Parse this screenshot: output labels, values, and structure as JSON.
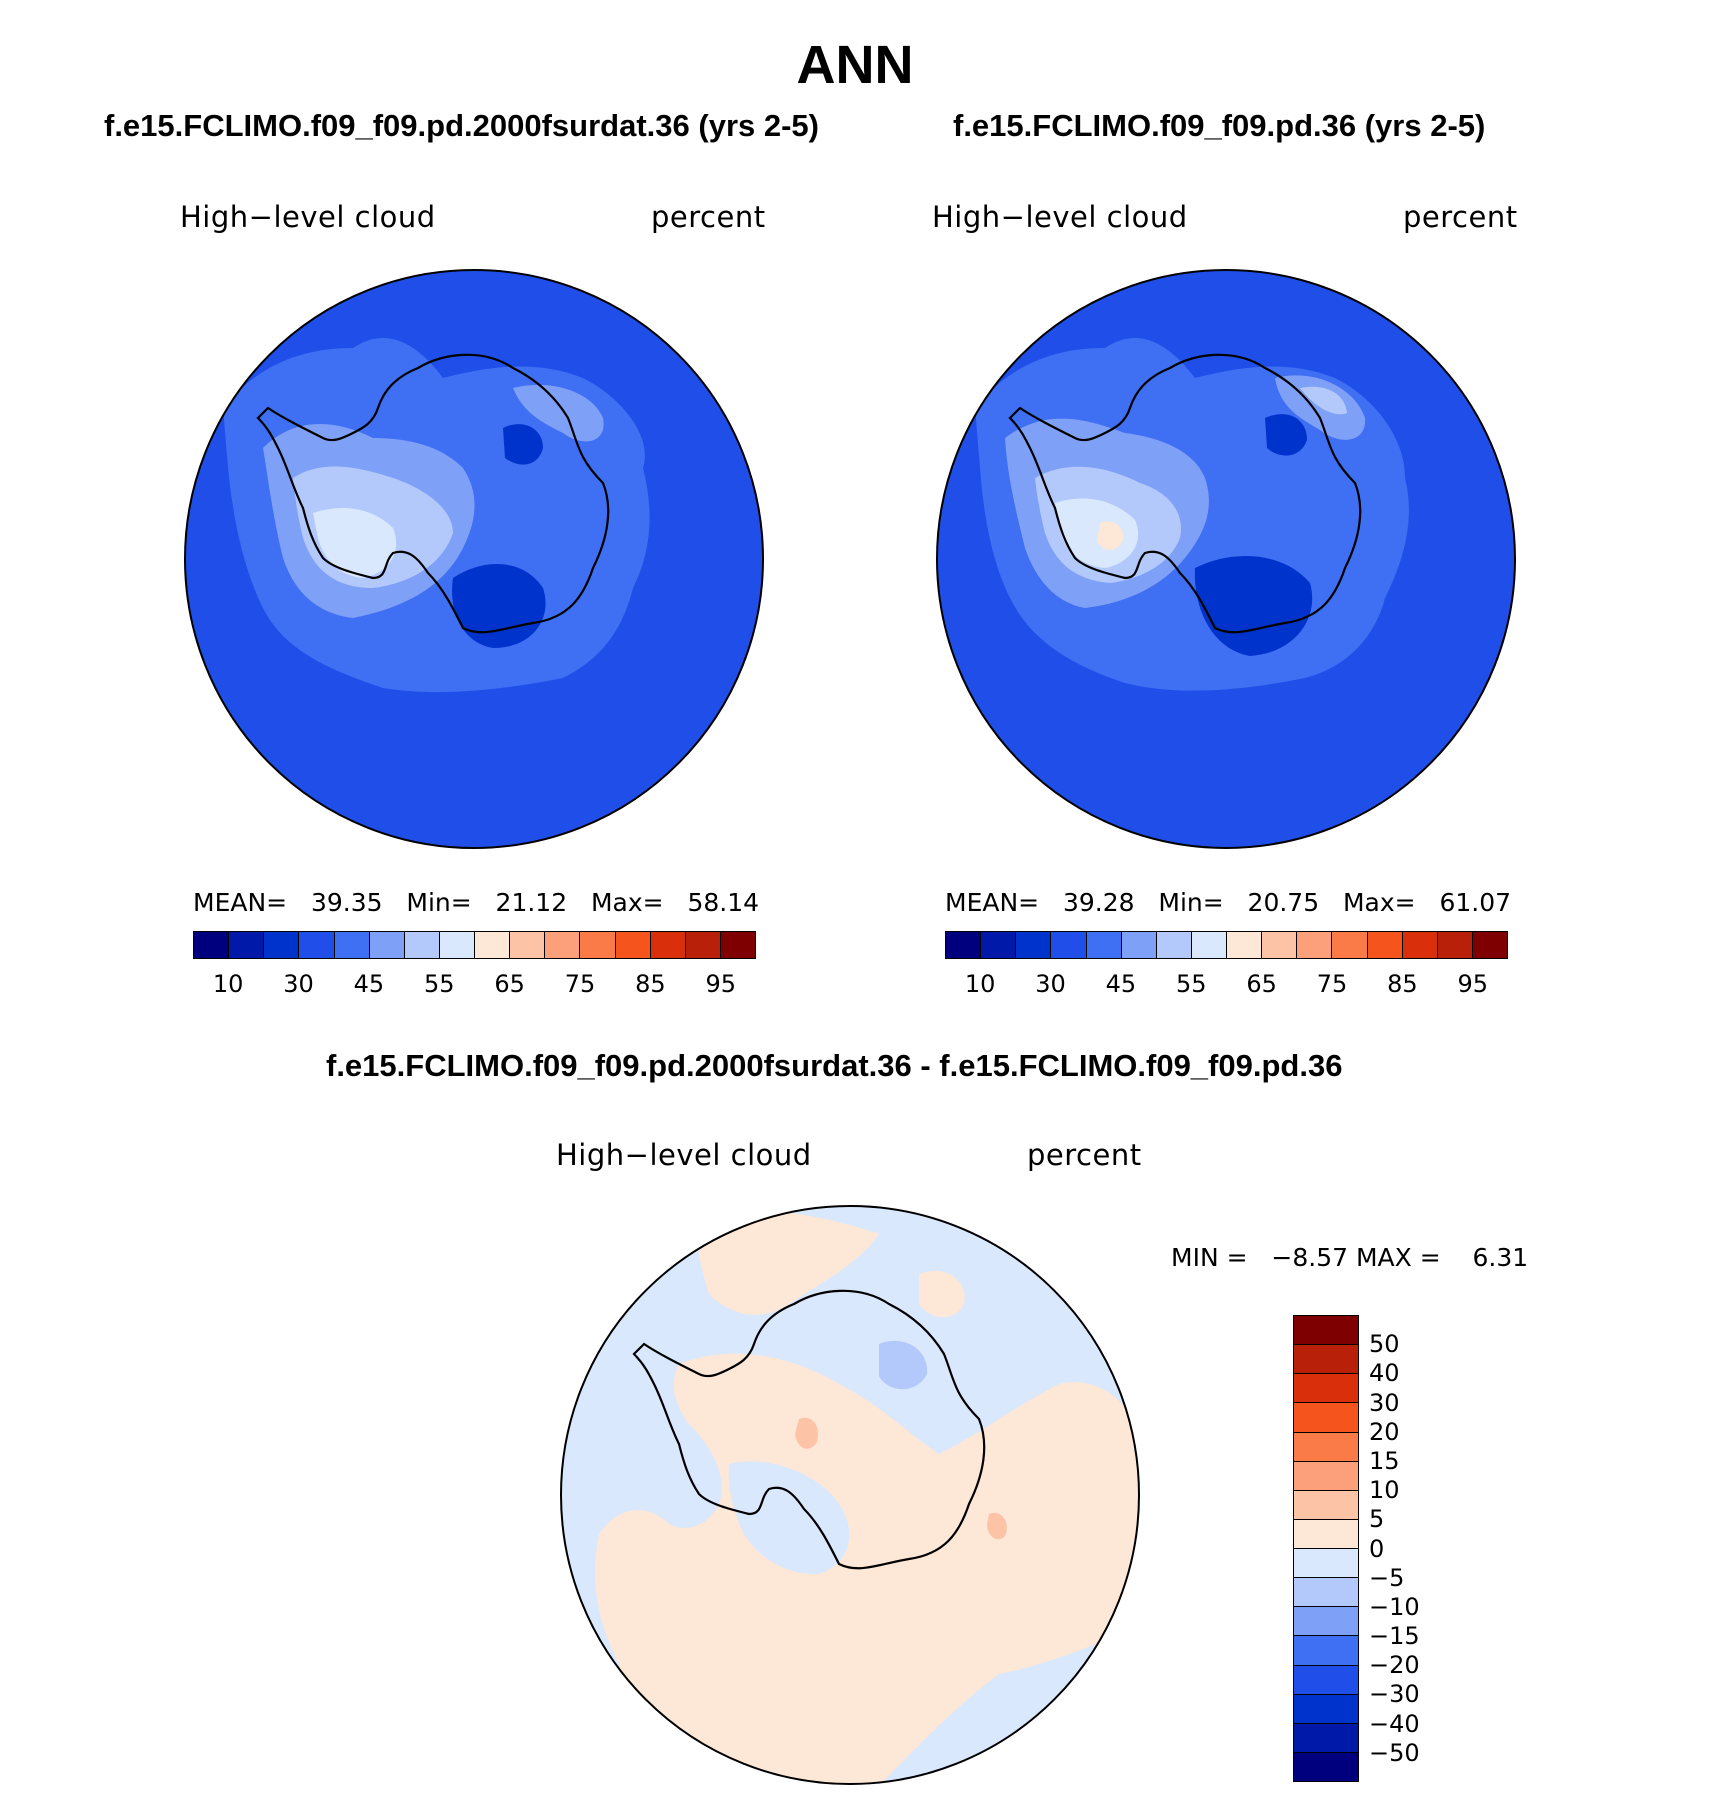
{
  "title": "ANN",
  "panels": [
    {
      "case_title": "f.e15.FCLIMO.f09_f09.pd.2000fsurdat.36 (yrs 2-5)",
      "variable": "High−level cloud",
      "units": "percent",
      "stats": {
        "mean_label": "MEAN=",
        "mean": "39.35",
        "min_label": "Min=",
        "min": "21.12",
        "max_label": "Max=",
        "max": "58.14"
      }
    },
    {
      "case_title": "f.e15.FCLIMO.f09_f09.pd.36 (yrs 2-5)",
      "variable": "High−level cloud",
      "units": "percent",
      "stats": {
        "mean_label": "MEAN=",
        "mean": "39.28",
        "min_label": "Min=",
        "min": "20.75",
        "max_label": "Max=",
        "max": "61.07"
      }
    }
  ],
  "diff_panel": {
    "case_title": "f.e15.FCLIMO.f09_f09.pd.2000fsurdat.36 - f.e15.FCLIMO.f09_f09.pd.36",
    "variable": "High−level cloud",
    "units": "percent",
    "min_label": "MIN =",
    "min": "−8.57",
    "max_label": "MAX =",
    "max": "6.31"
  },
  "colorbar_top": {
    "colors": [
      "#00007f",
      "#0019a8",
      "#0033cc",
      "#1f4fe8",
      "#3f6ff2",
      "#7fa0f7",
      "#b3c9fb",
      "#d9e8fd",
      "#fde7d7",
      "#fdc3a6",
      "#fca07b",
      "#fb7b48",
      "#f5541c",
      "#d92f0a",
      "#b8200a",
      "#7f0000"
    ],
    "tick_labels": [
      "10",
      "30",
      "45",
      "55",
      "65",
      "75",
      "85",
      "95"
    ]
  },
  "colorbar_diff": {
    "colors": [
      "#7f0000",
      "#b8200a",
      "#d92f0a",
      "#f5541c",
      "#fb7b48",
      "#fca07b",
      "#fdc3a6",
      "#fde7d7",
      "#d9e8fd",
      "#b3c9fb",
      "#7fa0f7",
      "#3f6ff2",
      "#1f4fe8",
      "#0033cc",
      "#0019a8",
      "#00007f"
    ],
    "tick_labels": [
      "50",
      "40",
      "30",
      "20",
      "15",
      "10",
      "5",
      "0",
      "−5",
      "−10",
      "−15",
      "−20",
      "−30",
      "−40",
      "−50"
    ]
  },
  "map_colors": {
    "base": "#1f4fe8",
    "mid": "#3f6ff2",
    "light": "#7fa0f7",
    "lighter": "#b3c9fb",
    "lightest": "#d9e8fd",
    "dark": "#0033cc",
    "warm": "#fde7d7",
    "diff_base": "#d9e8fd",
    "diff_warm": "#fde7d7",
    "diff_warm2": "#fdc3a6",
    "diff_cool": "#b3c9fb"
  }
}
